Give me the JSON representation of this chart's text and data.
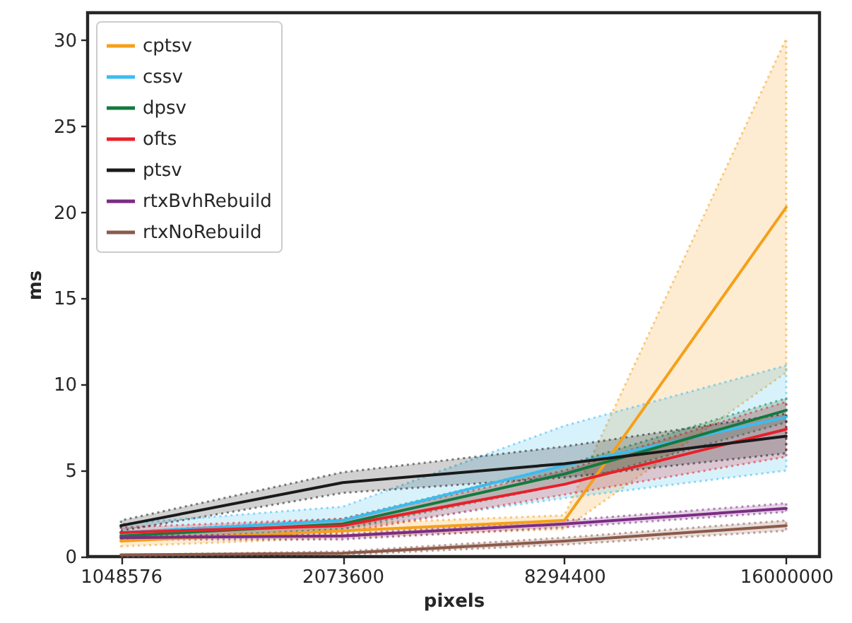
{
  "chart_data": {
    "type": "line",
    "xlabel": "pixels",
    "ylabel": "ms",
    "categories": [
      "1048576",
      "2073600",
      "8294400",
      "16000000"
    ],
    "ylim": [
      0,
      31.6
    ],
    "yticks": [
      0,
      5,
      10,
      15,
      20,
      25,
      30
    ],
    "legend": "top left",
    "grid": false,
    "line_style": "solid",
    "marker": "none",
    "series": [
      {
        "name": "cptsv",
        "color": "#f5a01a",
        "values": [
          0.9,
          1.5,
          2.1,
          20.3
        ],
        "lower": [
          0.6,
          1.1,
          1.6,
          10.7
        ],
        "upper": [
          1.2,
          1.9,
          2.4,
          30.1
        ]
      },
      {
        "name": "cssv",
        "color": "#3bbcef",
        "values": [
          1.4,
          2.1,
          5.3,
          8.1
        ],
        "lower": [
          1.0,
          1.6,
          3.4,
          5.0
        ],
        "upper": [
          1.9,
          2.9,
          7.6,
          11.1
        ]
      },
      {
        "name": "dpsv",
        "color": "#137a3f",
        "values": [
          1.2,
          1.9,
          4.8,
          8.5
        ],
        "lower": [
          0.9,
          1.6,
          4.2,
          7.8
        ],
        "upper": [
          1.4,
          2.2,
          5.3,
          9.2
        ]
      },
      {
        "name": "ofts",
        "color": "#e8202a",
        "values": [
          1.4,
          1.8,
          4.2,
          7.4
        ],
        "lower": [
          1.1,
          1.4,
          3.6,
          5.8
        ],
        "upper": [
          1.7,
          2.2,
          5.0,
          9.0
        ]
      },
      {
        "name": "ptsv",
        "color": "#1a1a1a",
        "values": [
          1.8,
          4.3,
          5.4,
          7.0
        ],
        "lower": [
          1.5,
          3.7,
          4.6,
          6.0
        ],
        "upper": [
          2.1,
          4.9,
          6.4,
          8.3
        ]
      },
      {
        "name": "rtxBvhRebuild",
        "color": "#7b2c83",
        "values": [
          1.1,
          1.2,
          1.9,
          2.8
        ],
        "lower": [
          1.0,
          1.0,
          1.7,
          2.6
        ],
        "upper": [
          1.2,
          1.3,
          2.1,
          3.1
        ]
      },
      {
        "name": "rtxNoRebuild",
        "color": "#8c5a4a",
        "values": [
          0.1,
          0.2,
          0.9,
          1.8
        ],
        "lower": [
          0.0,
          0.1,
          0.7,
          1.5
        ],
        "upper": [
          0.1,
          0.3,
          1.1,
          2.1
        ]
      }
    ]
  }
}
